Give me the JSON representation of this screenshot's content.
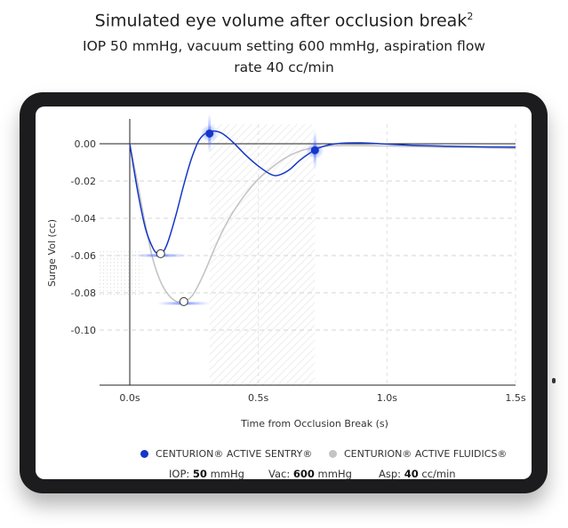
{
  "header": {
    "title": "Simulated eye volume after occlusion break",
    "title_sup": "2",
    "subtitle": "IOP 50 mmHg, vacuum setting 600 mmHg, aspiration flow rate 40 cc/min"
  },
  "chart_data": {
    "type": "line",
    "xlabel": "Time from Occlusion Break (s)",
    "ylabel": "Surge Vol (cc)",
    "xlim": [
      -0.1,
      1.5
    ],
    "ylim": [
      -0.12,
      0.01
    ],
    "x_ticks": [
      "0.0s",
      "0.5s",
      "1.0s",
      "1.5s"
    ],
    "x_tick_values": [
      0,
      0.5,
      1.0,
      1.5
    ],
    "y_ticks": [
      "0.00",
      "-0.02",
      "-0.04",
      "-0.06",
      "-0.08",
      "-0.10"
    ],
    "y_tick_values": [
      0,
      -0.02,
      -0.04,
      -0.06,
      -0.08,
      -0.1
    ],
    "grid": "dashed",
    "shaded_region": [
      0.31,
      0.72
    ],
    "series": [
      {
        "name": "CENTURION® ACTIVE FLUIDICS®",
        "color": "#c4c4c4",
        "x": [
          0,
          0.03,
          0.06,
          0.09,
          0.12,
          0.15,
          0.18,
          0.21,
          0.24,
          0.27,
          0.3,
          0.33,
          0.36,
          0.4,
          0.45,
          0.5,
          0.55,
          0.6,
          0.65,
          0.7,
          0.75,
          0.8,
          0.9,
          1.0,
          1.1,
          1.2,
          1.3,
          1.4,
          1.5
        ],
        "values": [
          0,
          -0.021,
          -0.043,
          -0.062,
          -0.074,
          -0.081,
          -0.0845,
          -0.0847,
          -0.082,
          -0.075,
          -0.066,
          -0.056,
          -0.047,
          -0.037,
          -0.027,
          -0.019,
          -0.013,
          -0.008,
          -0.0045,
          -0.0025,
          -0.0015,
          -0.001,
          -0.001,
          -0.0012,
          -0.0015,
          -0.0018,
          -0.002,
          -0.0022,
          -0.0025
        ]
      },
      {
        "name": "CENTURION® ACTIVE SENTRY®",
        "color": "#1536c8",
        "x": [
          0,
          0.03,
          0.06,
          0.09,
          0.11,
          0.13,
          0.15,
          0.18,
          0.21,
          0.24,
          0.27,
          0.3,
          0.33,
          0.36,
          0.4,
          0.45,
          0.5,
          0.55,
          0.58,
          0.62,
          0.66,
          0.7,
          0.74,
          0.8,
          0.9,
          1.0,
          1.1,
          1.2,
          1.3,
          1.4,
          1.5
        ],
        "values": [
          0,
          -0.025,
          -0.045,
          -0.056,
          -0.059,
          -0.058,
          -0.052,
          -0.038,
          -0.022,
          -0.008,
          0.002,
          0.006,
          0.0068,
          0.0055,
          0.001,
          -0.006,
          -0.012,
          -0.0165,
          -0.0168,
          -0.014,
          -0.009,
          -0.005,
          -0.002,
          0,
          0.0005,
          -0.0002,
          -0.0008,
          -0.0012,
          -0.0015,
          -0.0017,
          -0.0018
        ]
      }
    ],
    "markers": [
      {
        "series": "CENTURION® ACTIVE SENTRY®",
        "x": 0.12,
        "y": -0.059,
        "style": "open"
      },
      {
        "series": "CENTURION® ACTIVE FLUIDICS®",
        "x": 0.21,
        "y": -0.0847,
        "style": "open"
      },
      {
        "series": "CENTURION® ACTIVE SENTRY®",
        "x": 0.31,
        "y": 0.0055,
        "style": "filled"
      },
      {
        "series": "CENTURION® ACTIVE SENTRY®",
        "x": 0.72,
        "y": -0.0035,
        "style": "filled"
      }
    ]
  },
  "legend": {
    "items": [
      {
        "label": "CENTURION® ACTIVE SENTRY®",
        "color": "#1536c8"
      },
      {
        "label": "CENTURION® ACTIVE FLUIDICS®",
        "color": "#c4c4c4"
      }
    ]
  },
  "settings": {
    "iop_label": "IOP:",
    "iop_value": "50",
    "iop_unit": "mmHg",
    "vac_label": "Vac:",
    "vac_value": "600",
    "vac_unit": "mmHg",
    "asp_label": "Asp:",
    "asp_value": "40",
    "asp_unit": "cc/min"
  }
}
